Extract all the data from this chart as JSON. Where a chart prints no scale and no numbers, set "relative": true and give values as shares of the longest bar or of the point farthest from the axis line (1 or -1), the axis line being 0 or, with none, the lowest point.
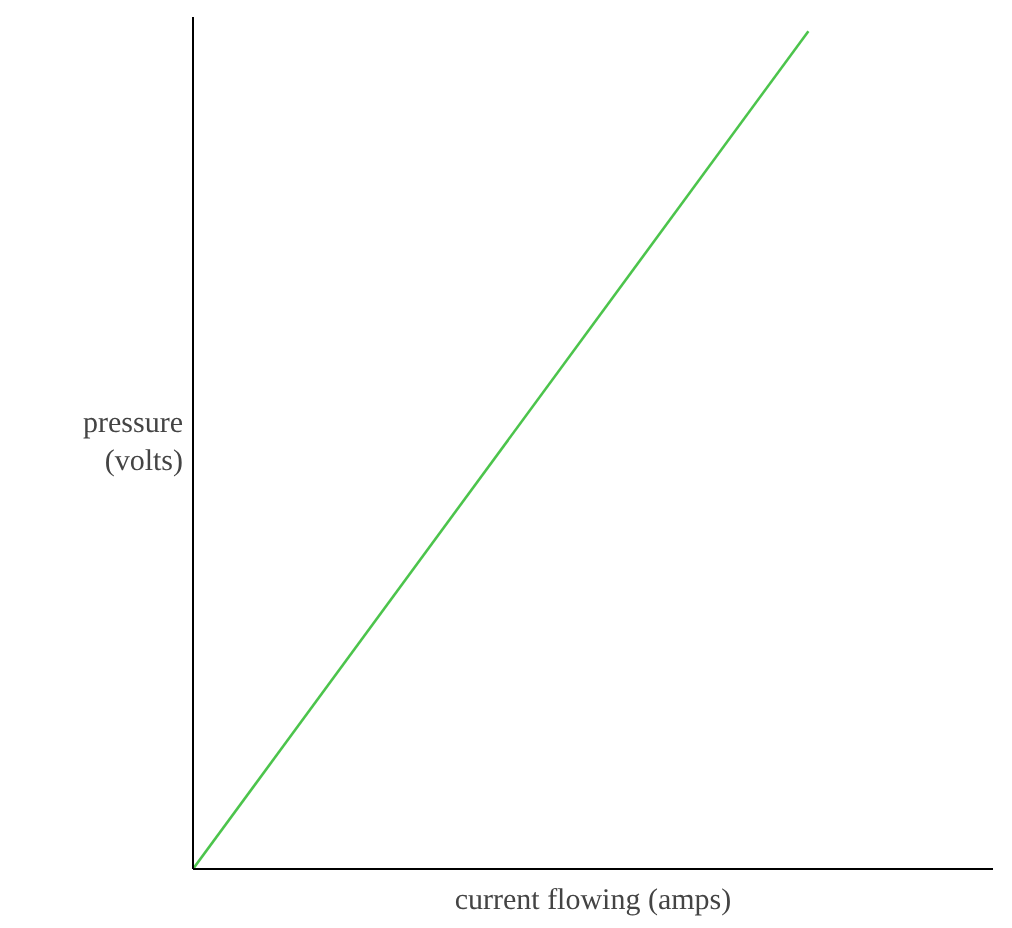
{
  "chart_data": {
    "type": "line",
    "relative": true,
    "xlabel": "current flowing (amps)",
    "ylabel": "pressure\n(volts)",
    "categories": [
      null,
      null
    ],
    "series": [
      {
        "color": "#4cc44c",
        "values": [
          0,
          1
        ]
      }
    ],
    "marker": "none",
    "line_style": "solid"
  }
}
